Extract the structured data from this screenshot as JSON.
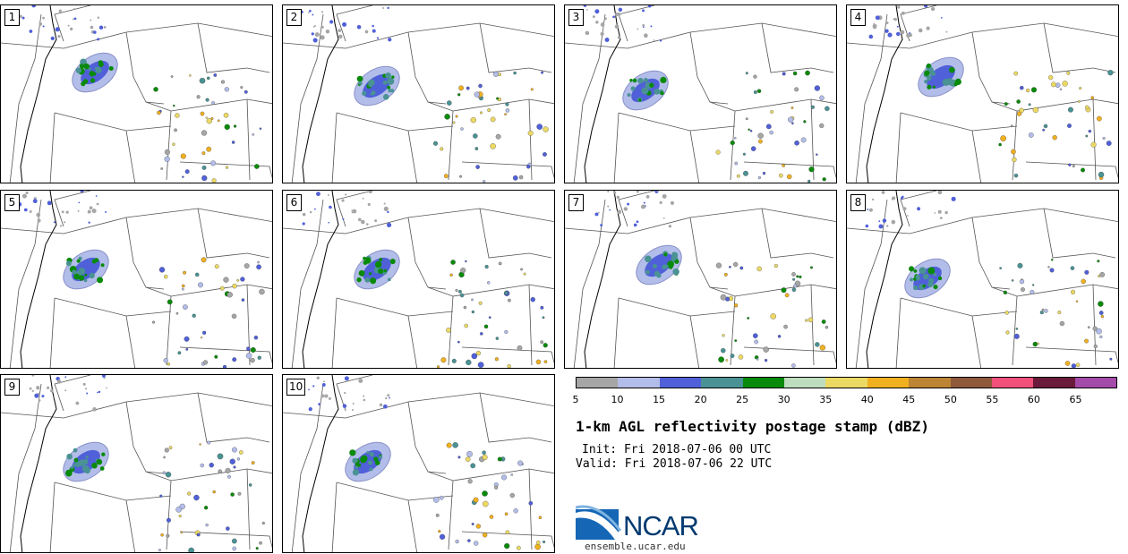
{
  "panels": [
    {
      "label": "1"
    },
    {
      "label": "2"
    },
    {
      "label": "3"
    },
    {
      "label": "4"
    },
    {
      "label": "5"
    },
    {
      "label": "6"
    },
    {
      "label": "7"
    },
    {
      "label": "8"
    },
    {
      "label": "9"
    },
    {
      "label": "10"
    }
  ],
  "colorbar": {
    "colors": [
      "#a6a6a6",
      "#b3bde9",
      "#5060d8",
      "#4a9294",
      "#0a8a0a",
      "#bedcbe",
      "#ecd964",
      "#f0b020",
      "#bc8433",
      "#8e5a3a",
      "#f0507a",
      "#6a1a3a",
      "#a44aa8"
    ],
    "ticks": [
      "5",
      "10",
      "15",
      "20",
      "25",
      "30",
      "35",
      "40",
      "45",
      "50",
      "55",
      "60",
      "65"
    ]
  },
  "title": "1-km AGL reflectivity postage stamp (dBZ)",
  "init": "Init: Fri 2018-07-06 00 UTC",
  "valid": "Valid: Fri 2018-07-06 22 UTC",
  "logo": {
    "text": "NCAR",
    "url": "ensemble.ucar.edu"
  }
}
